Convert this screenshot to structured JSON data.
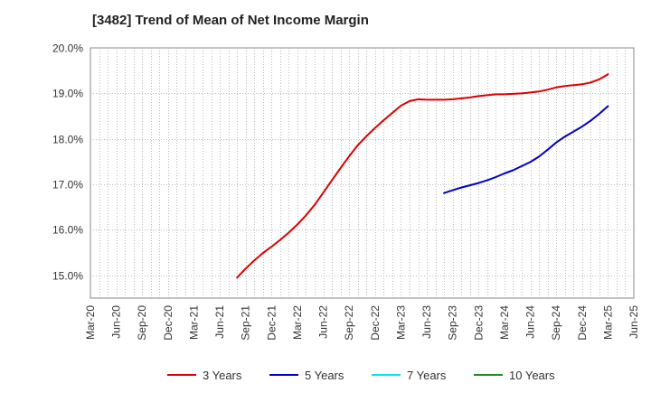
{
  "chart_data": {
    "type": "line",
    "title": "[3482]  Trend of Mean of Net Income Margin",
    "xlabel": "",
    "ylabel": "",
    "x_ticks": [
      "Mar-20",
      "Jun-20",
      "Sep-20",
      "Dec-20",
      "Mar-21",
      "Jun-21",
      "Sep-21",
      "Dec-21",
      "Mar-22",
      "Jun-22",
      "Sep-22",
      "Dec-22",
      "Mar-23",
      "Jun-23",
      "Sep-23",
      "Dec-23",
      "Mar-24",
      "Jun-24",
      "Sep-24",
      "Dec-24",
      "Mar-25",
      "Jun-25"
    ],
    "y_ticks": [
      "15.0%",
      "16.0%",
      "17.0%",
      "18.0%",
      "19.0%",
      "20.0%"
    ],
    "ylim": [
      14.5,
      20.0
    ],
    "grid": true,
    "legend_position": "bottom",
    "series": [
      {
        "name": "3 Years",
        "color": "#dd0000",
        "x": [
          "Aug-21",
          "Sep-21",
          "Oct-21",
          "Nov-21",
          "Dec-21",
          "Jan-22",
          "Feb-22",
          "Mar-22",
          "Apr-22",
          "May-22",
          "Jun-22",
          "Jul-22",
          "Aug-22",
          "Sep-22",
          "Oct-22",
          "Nov-22",
          "Dec-22",
          "Jan-23",
          "Feb-23",
          "Mar-23",
          "Apr-23",
          "May-23",
          "Jun-23",
          "Jul-23",
          "Aug-23",
          "Sep-23",
          "Oct-23",
          "Nov-23",
          "Dec-23",
          "Jan-24",
          "Feb-24",
          "Mar-24",
          "Apr-24",
          "May-24",
          "Jun-24",
          "Jul-24",
          "Aug-24",
          "Sep-24",
          "Oct-24",
          "Nov-24",
          "Dec-24",
          "Jan-25",
          "Feb-25",
          "Mar-25"
        ],
        "values": [
          14.95,
          15.15,
          15.33,
          15.49,
          15.63,
          15.78,
          15.94,
          16.12,
          16.32,
          16.55,
          16.82,
          17.09,
          17.36,
          17.62,
          17.86,
          18.06,
          18.24,
          18.41,
          18.57,
          18.73,
          18.83,
          18.87,
          18.86,
          18.86,
          18.86,
          18.87,
          18.89,
          18.91,
          18.94,
          18.96,
          18.98,
          18.98,
          18.99,
          19.0,
          19.02,
          19.04,
          19.08,
          19.13,
          19.16,
          19.18,
          19.2,
          19.24,
          19.31,
          19.42
        ]
      },
      {
        "name": "5 Years",
        "color": "#0000cc",
        "x": [
          "Aug-23",
          "Sep-23",
          "Oct-23",
          "Nov-23",
          "Dec-23",
          "Jan-24",
          "Feb-24",
          "Mar-24",
          "Apr-24",
          "May-24",
          "Jun-24",
          "Jul-24",
          "Aug-24",
          "Sep-24",
          "Oct-24",
          "Nov-24",
          "Dec-24",
          "Jan-25",
          "Feb-25",
          "Mar-25"
        ],
        "values": [
          16.81,
          16.87,
          16.93,
          16.98,
          17.03,
          17.09,
          17.16,
          17.24,
          17.31,
          17.4,
          17.49,
          17.61,
          17.76,
          17.92,
          18.05,
          18.16,
          18.27,
          18.4,
          18.55,
          18.72
        ]
      },
      {
        "name": "7 Years",
        "color": "#00e5ee",
        "x": [],
        "values": []
      },
      {
        "name": "10 Years",
        "color": "#228b22",
        "x": [],
        "values": []
      }
    ]
  }
}
